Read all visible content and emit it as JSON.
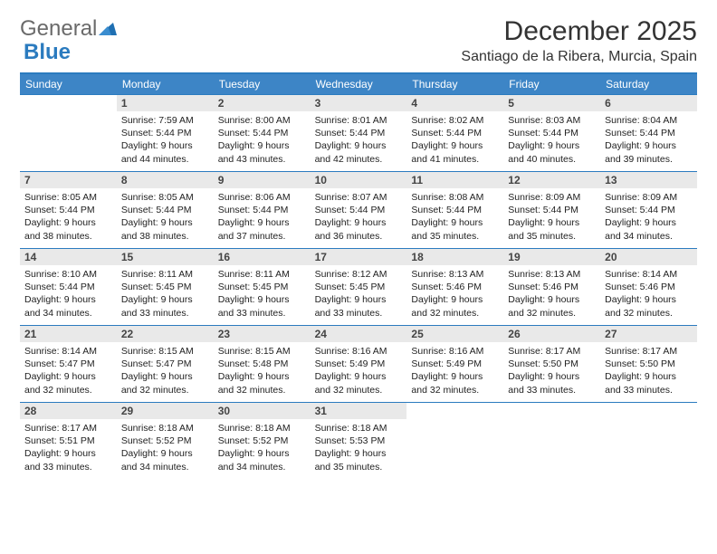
{
  "logo": {
    "part1": "General",
    "part2": "Blue"
  },
  "title": "December 2025",
  "location": "Santiago de la Ribera, Murcia, Spain",
  "colors": {
    "accent": "#2b7bbf",
    "header_bg": "#3d85c6",
    "daynum_bg": "#e9e9e9",
    "text": "#222222",
    "title_text": "#333333"
  },
  "day_names": [
    "Sunday",
    "Monday",
    "Tuesday",
    "Wednesday",
    "Thursday",
    "Friday",
    "Saturday"
  ],
  "weeks": [
    [
      {
        "n": "",
        "sr": "",
        "ss": "",
        "dl": ""
      },
      {
        "n": "1",
        "sr": "7:59 AM",
        "ss": "5:44 PM",
        "dl": "9 hours and 44 minutes."
      },
      {
        "n": "2",
        "sr": "8:00 AM",
        "ss": "5:44 PM",
        "dl": "9 hours and 43 minutes."
      },
      {
        "n": "3",
        "sr": "8:01 AM",
        "ss": "5:44 PM",
        "dl": "9 hours and 42 minutes."
      },
      {
        "n": "4",
        "sr": "8:02 AM",
        "ss": "5:44 PM",
        "dl": "9 hours and 41 minutes."
      },
      {
        "n": "5",
        "sr": "8:03 AM",
        "ss": "5:44 PM",
        "dl": "9 hours and 40 minutes."
      },
      {
        "n": "6",
        "sr": "8:04 AM",
        "ss": "5:44 PM",
        "dl": "9 hours and 39 minutes."
      }
    ],
    [
      {
        "n": "7",
        "sr": "8:05 AM",
        "ss": "5:44 PM",
        "dl": "9 hours and 38 minutes."
      },
      {
        "n": "8",
        "sr": "8:05 AM",
        "ss": "5:44 PM",
        "dl": "9 hours and 38 minutes."
      },
      {
        "n": "9",
        "sr": "8:06 AM",
        "ss": "5:44 PM",
        "dl": "9 hours and 37 minutes."
      },
      {
        "n": "10",
        "sr": "8:07 AM",
        "ss": "5:44 PM",
        "dl": "9 hours and 36 minutes."
      },
      {
        "n": "11",
        "sr": "8:08 AM",
        "ss": "5:44 PM",
        "dl": "9 hours and 35 minutes."
      },
      {
        "n": "12",
        "sr": "8:09 AM",
        "ss": "5:44 PM",
        "dl": "9 hours and 35 minutes."
      },
      {
        "n": "13",
        "sr": "8:09 AM",
        "ss": "5:44 PM",
        "dl": "9 hours and 34 minutes."
      }
    ],
    [
      {
        "n": "14",
        "sr": "8:10 AM",
        "ss": "5:44 PM",
        "dl": "9 hours and 34 minutes."
      },
      {
        "n": "15",
        "sr": "8:11 AM",
        "ss": "5:45 PM",
        "dl": "9 hours and 33 minutes."
      },
      {
        "n": "16",
        "sr": "8:11 AM",
        "ss": "5:45 PM",
        "dl": "9 hours and 33 minutes."
      },
      {
        "n": "17",
        "sr": "8:12 AM",
        "ss": "5:45 PM",
        "dl": "9 hours and 33 minutes."
      },
      {
        "n": "18",
        "sr": "8:13 AM",
        "ss": "5:46 PM",
        "dl": "9 hours and 32 minutes."
      },
      {
        "n": "19",
        "sr": "8:13 AM",
        "ss": "5:46 PM",
        "dl": "9 hours and 32 minutes."
      },
      {
        "n": "20",
        "sr": "8:14 AM",
        "ss": "5:46 PM",
        "dl": "9 hours and 32 minutes."
      }
    ],
    [
      {
        "n": "21",
        "sr": "8:14 AM",
        "ss": "5:47 PM",
        "dl": "9 hours and 32 minutes."
      },
      {
        "n": "22",
        "sr": "8:15 AM",
        "ss": "5:47 PM",
        "dl": "9 hours and 32 minutes."
      },
      {
        "n": "23",
        "sr": "8:15 AM",
        "ss": "5:48 PM",
        "dl": "9 hours and 32 minutes."
      },
      {
        "n": "24",
        "sr": "8:16 AM",
        "ss": "5:49 PM",
        "dl": "9 hours and 32 minutes."
      },
      {
        "n": "25",
        "sr": "8:16 AM",
        "ss": "5:49 PM",
        "dl": "9 hours and 32 minutes."
      },
      {
        "n": "26",
        "sr": "8:17 AM",
        "ss": "5:50 PM",
        "dl": "9 hours and 33 minutes."
      },
      {
        "n": "27",
        "sr": "8:17 AM",
        "ss": "5:50 PM",
        "dl": "9 hours and 33 minutes."
      }
    ],
    [
      {
        "n": "28",
        "sr": "8:17 AM",
        "ss": "5:51 PM",
        "dl": "9 hours and 33 minutes."
      },
      {
        "n": "29",
        "sr": "8:18 AM",
        "ss": "5:52 PM",
        "dl": "9 hours and 34 minutes."
      },
      {
        "n": "30",
        "sr": "8:18 AM",
        "ss": "5:52 PM",
        "dl": "9 hours and 34 minutes."
      },
      {
        "n": "31",
        "sr": "8:18 AM",
        "ss": "5:53 PM",
        "dl": "9 hours and 35 minutes."
      },
      {
        "n": "",
        "sr": "",
        "ss": "",
        "dl": ""
      },
      {
        "n": "",
        "sr": "",
        "ss": "",
        "dl": ""
      },
      {
        "n": "",
        "sr": "",
        "ss": "",
        "dl": ""
      }
    ]
  ],
  "labels": {
    "sunrise": "Sunrise:",
    "sunset": "Sunset:",
    "daylight": "Daylight:"
  }
}
